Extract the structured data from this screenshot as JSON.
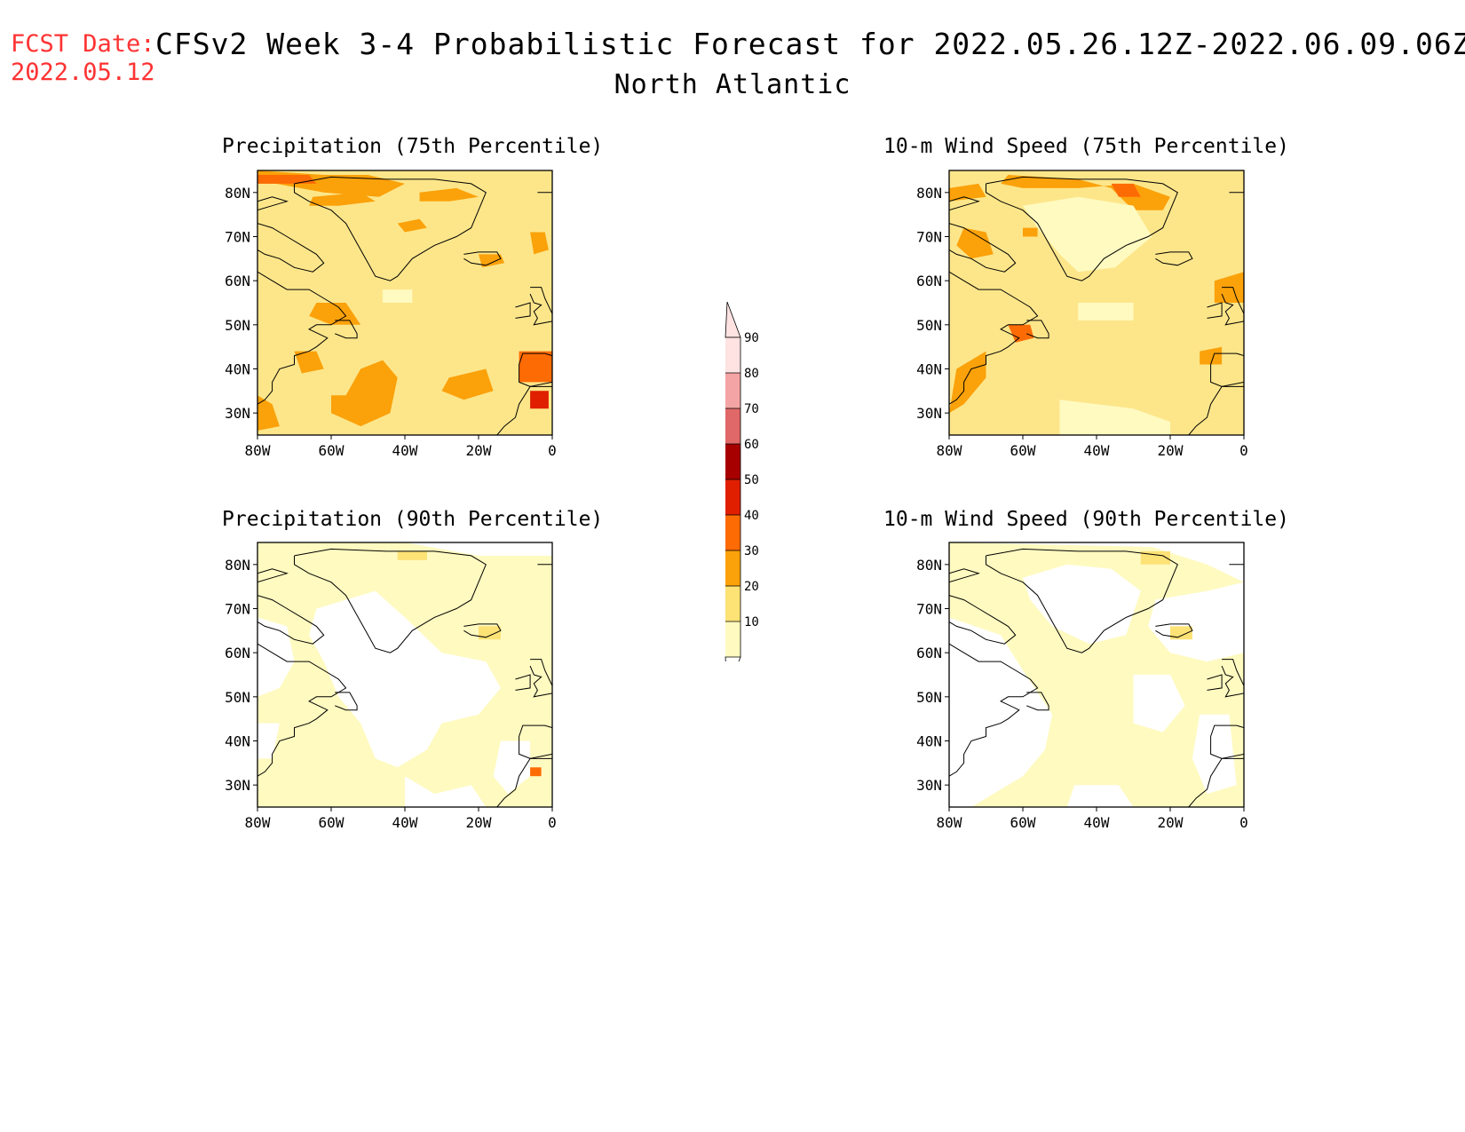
{
  "header": {
    "fcst_label": "FCST Date:",
    "fcst_date": "2022.05.12",
    "title": "CFSv2 Week 3-4 Probabilistic Forecast for 2022.05.26.12Z-2022.06.09.06Z",
    "region": "North Atlantic"
  },
  "axes": {
    "lat_labels": [
      "80N",
      "70N",
      "60N",
      "50N",
      "40N",
      "30N"
    ],
    "lon_labels": [
      "80W",
      "60W",
      "40W",
      "20W",
      "0"
    ]
  },
  "panels": [
    {
      "title": "Precipitation (75th Percentile)",
      "base_color": "#fde68a"
    },
    {
      "title": "10-m Wind Speed (75th Percentile)",
      "base_color": "#fde68a"
    },
    {
      "title": "Precipitation (90th Percentile)",
      "base_color": "#ffffff"
    },
    {
      "title": "10-m Wind Speed (90th Percentile)",
      "base_color": "#ffffff"
    }
  ],
  "colorbar": {
    "levels": [
      {
        "label": "10",
        "color": "#fffac0"
      },
      {
        "label": "20",
        "color": "#fde276"
      },
      {
        "label": "30",
        "color": "#fba10a"
      },
      {
        "label": "40",
        "color": "#fd6b05"
      },
      {
        "label": "50",
        "color": "#e01f00"
      },
      {
        "label": "60",
        "color": "#a70000"
      },
      {
        "label": "70",
        "color": "#e06868"
      },
      {
        "label": "80",
        "color": "#f4a4a4"
      },
      {
        "label": "90",
        "color": "#ffe2e2"
      }
    ]
  },
  "colors": {
    "light": "#fffac0",
    "medium": "#fde276",
    "orange": "#fba10a",
    "dark_orange": "#fd6b05",
    "red": "#e01f00"
  }
}
